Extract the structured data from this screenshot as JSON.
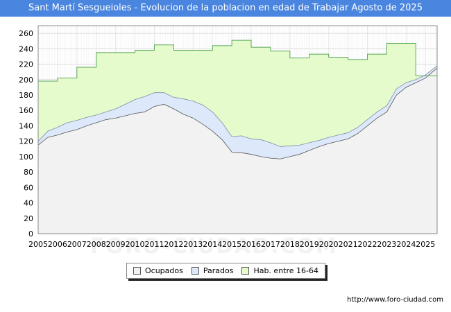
{
  "header": {
    "title": "Sant Martí Sesgueioles - Evolucion de la poblacion en edad de Trabajar Agosto de 2025"
  },
  "watermark": "FORO-CIUDAD.COM",
  "source_url": "http://www.foro-ciudad.com",
  "colors": {
    "title_bg": "#4a86e0",
    "ocupados_fill": "#f2f2f2",
    "parados_fill": "#dde9fb",
    "hab_fill": "#e6fbcc",
    "hab_line": "#58a858"
  },
  "chart_data": {
    "type": "area",
    "title": "Sant Martí Sesgueioles - Evolucion de la poblacion en edad de Trabajar Agosto de 2025",
    "xlabel": "",
    "ylabel": "",
    "xlim": [
      2005,
      2025.6
    ],
    "ylim": [
      0,
      270
    ],
    "y_ticks": [
      0,
      20,
      40,
      60,
      80,
      100,
      120,
      140,
      160,
      180,
      200,
      220,
      240,
      260
    ],
    "x_ticks": [
      "2005",
      "2006",
      "2007",
      "2008",
      "2009",
      "2010",
      "2011",
      "2012",
      "2013",
      "2014",
      "2015",
      "2016",
      "2017",
      "2018",
      "2019",
      "2020",
      "2021",
      "2022",
      "2023",
      "2024",
      "2025"
    ],
    "grid": true,
    "legend_position": "bottom",
    "series": [
      {
        "name": "Ocupados",
        "x": [
          2005.0,
          2005.5,
          2006.0,
          2006.5,
          2007.0,
          2007.5,
          2008.0,
          2008.5,
          2009.0,
          2009.5,
          2010.0,
          2010.5,
          2011.0,
          2011.5,
          2012.0,
          2012.5,
          2013.0,
          2013.5,
          2014.0,
          2014.5,
          2015.0,
          2015.5,
          2016.0,
          2016.5,
          2017.0,
          2017.5,
          2018.0,
          2018.5,
          2019.0,
          2019.5,
          2020.0,
          2020.5,
          2021.0,
          2021.5,
          2022.0,
          2022.5,
          2023.0,
          2023.5,
          2024.0,
          2024.5,
          2025.0,
          2025.6
        ],
        "values": [
          115,
          125,
          128,
          132,
          135,
          140,
          144,
          148,
          150,
          153,
          156,
          158,
          165,
          168,
          162,
          155,
          150,
          142,
          133,
          122,
          106,
          105,
          103,
          100,
          98,
          97,
          100,
          103,
          108,
          113,
          117,
          120,
          123,
          130,
          140,
          150,
          158,
          180,
          190,
          196,
          202,
          215
        ]
      },
      {
        "name": "Parados",
        "x": [
          2005.0,
          2005.5,
          2006.0,
          2006.5,
          2007.0,
          2007.5,
          2008.0,
          2008.5,
          2009.0,
          2009.5,
          2010.0,
          2010.5,
          2011.0,
          2011.5,
          2012.0,
          2012.5,
          2013.0,
          2013.5,
          2014.0,
          2014.5,
          2015.0,
          2015.5,
          2016.0,
          2016.5,
          2017.0,
          2017.5,
          2018.0,
          2018.5,
          2019.0,
          2019.5,
          2020.0,
          2020.5,
          2021.0,
          2021.5,
          2022.0,
          2022.5,
          2023.0,
          2023.5,
          2024.0,
          2024.5,
          2025.0,
          2025.6
        ],
        "values": [
          5,
          8,
          10,
          12,
          12,
          11,
          10,
          10,
          12,
          15,
          18,
          20,
          18,
          15,
          15,
          20,
          22,
          25,
          25,
          22,
          20,
          22,
          20,
          22,
          20,
          16,
          14,
          12,
          10,
          8,
          8,
          8,
          8,
          8,
          8,
          8,
          8,
          8,
          6,
          4,
          4,
          3
        ]
      },
      {
        "name": "Hab. entre 16-64",
        "x": [
          2005.0,
          2006.0,
          2007.0,
          2008.0,
          2009.0,
          2010.0,
          2011.0,
          2012.0,
          2013.0,
          2014.0,
          2015.0,
          2016.0,
          2017.0,
          2018.0,
          2019.0,
          2020.0,
          2021.0,
          2022.0,
          2023.0,
          2023.9,
          2024.5,
          2025.0,
          2025.6
        ],
        "values": [
          198,
          202,
          216,
          235,
          235,
          238,
          245,
          238,
          238,
          244,
          251,
          242,
          237,
          228,
          233,
          229,
          226,
          233,
          247,
          247,
          205,
          205,
          224
        ]
      }
    ]
  },
  "legend": {
    "items": [
      "Ocupados",
      "Parados",
      "Hab. entre 16-64"
    ]
  }
}
